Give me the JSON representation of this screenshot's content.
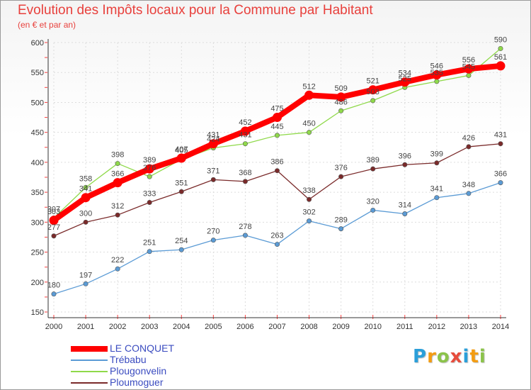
{
  "chart_data": {
    "type": "line",
    "title": "Evolution des Impôts locaux pour la Commune par Habitant",
    "subtitle": "(en € et par an)",
    "categories": [
      "2000",
      "2001",
      "2002",
      "2003",
      "2004",
      "2005",
      "2006",
      "2007",
      "2008",
      "2009",
      "2010",
      "2011",
      "2012",
      "2013",
      "2014"
    ],
    "ylim": [
      150,
      600
    ],
    "yticks": [
      150,
      200,
      250,
      300,
      350,
      400,
      450,
      500,
      550,
      600
    ],
    "grid": true,
    "legend_position": "bottom-left",
    "series": [
      {
        "name": "LE CONQUET",
        "color": "#ff0000",
        "values": [
          303,
          341,
          366,
          389,
          407,
          431,
          452,
          475,
          512,
          509,
          521,
          534,
          546,
          556,
          561
        ]
      },
      {
        "name": "Trébabu",
        "color": "#5b9bd5",
        "values": [
          180,
          197,
          222,
          251,
          254,
          270,
          278,
          263,
          302,
          289,
          320,
          314,
          341,
          348,
          366
        ]
      },
      {
        "name": "Plougonvelin",
        "color": "#8fd94a",
        "values": [
          307,
          358,
          398,
          376,
          405,
          424,
          431,
          445,
          450,
          486,
          503,
          525,
          535,
          545,
          590
        ]
      },
      {
        "name": "Ploumoguer",
        "color": "#7a2a2a",
        "values": [
          277,
          300,
          312,
          333,
          351,
          371,
          368,
          386,
          338,
          376,
          389,
          396,
          399,
          426,
          431
        ]
      }
    ]
  },
  "logo": {
    "letters": [
      "P",
      "r",
      "o",
      "x",
      "i",
      "t",
      "i"
    ],
    "colors": [
      "#2b9fd9",
      "#f39c12",
      "#8bc34a",
      "#e74c3c",
      "#2b9fd9",
      "#f39c12",
      "#8bc34a"
    ]
  }
}
